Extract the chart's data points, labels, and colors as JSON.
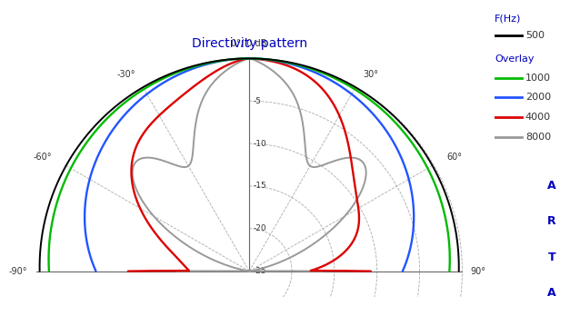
{
  "title": "Directivity pattern",
  "title_color": "#0000bb",
  "background_color": "#ffffff",
  "grid_color": "#aaaaaa",
  "db_circles": [
    0,
    -5,
    -10,
    -15,
    -20,
    -25
  ],
  "angle_lines_deg": [
    0,
    30,
    60,
    90,
    -30,
    -60,
    -90
  ],
  "legend_title_f": "F(Hz)",
  "legend_500_label": "500",
  "legend_500_color": "#000000",
  "legend_overlay_label": "Overlay",
  "legend_overlay_color": "#0000bb",
  "legend_1000_label": "1000",
  "legend_1000_color": "#00bb00",
  "legend_2000_label": "2000",
  "legend_2000_color": "#2255ff",
  "legend_4000_label": "4000",
  "legend_4000_color": "#dd0000",
  "legend_8000_label": "8000",
  "legend_8000_color": "#999999",
  "arta_color": "#0000bb",
  "text_color": "#333333",
  "db_min": -25,
  "db_max": 0
}
